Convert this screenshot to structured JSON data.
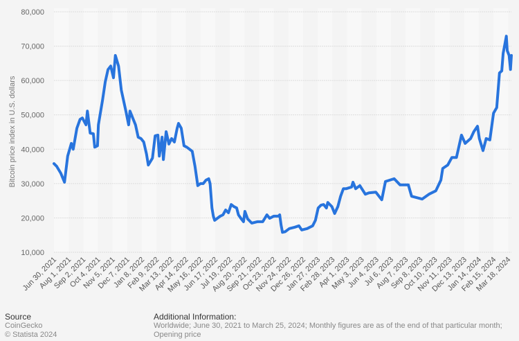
{
  "chart_data": {
    "type": "line",
    "title": "",
    "xlabel": "",
    "ylabel": "Bitcoin price index in U.S. dollars",
    "ylim": [
      10000,
      80000
    ],
    "yticks": [
      10000,
      20000,
      30000,
      40000,
      50000,
      60000,
      70000,
      80000
    ],
    "ytick_labels": [
      "10,000",
      "20,000",
      "30,000",
      "40,000",
      "50,000",
      "60,000",
      "70,000",
      "80,000"
    ],
    "x_unit": "days since Jun 30, 2021",
    "xlim": [
      0,
      999
    ],
    "grid": true,
    "line_color": "#2874dd",
    "xtick_labels": [
      "Jun 30, 2021",
      "Aug 1, 2021",
      "Sep 2, 2021",
      "Oct 4, 2021",
      "Nov 5, 2021",
      "Dec 7, 2021",
      "Jan 8, 2022",
      "Feb 9, 2022",
      "Mar 13, 2022",
      "Apr 14, 2022",
      "May 16, 2022",
      "Jun 17, 2022",
      "Jul 19, 2022",
      "Aug 20, 2022",
      "Sep 21, 2022",
      "Oct 23, 2022",
      "Nov 24, 2022",
      "Dec 26, 2022",
      "Jan 27, 2023",
      "Feb 28, 2023",
      "Apr 1, 2023",
      "May 3, 2023",
      "Jun 4, 2023",
      "Jul 6, 2023",
      "Aug 7, 2023",
      "Sep 8, 2023",
      "Oct 10, 2023",
      "Nov 11, 2023",
      "Dec 13, 2023",
      "Jan 14, 2024",
      "Feb 15, 2024",
      "Mar 18, 2024"
    ],
    "xtick_step_days": 32,
    "series": [
      {
        "name": "Bitcoin price index",
        "x": [
          0,
          6,
          15,
          23,
          30,
          38,
          42,
          50,
          57,
          62,
          70,
          73,
          79,
          86,
          89,
          95,
          97,
          106,
          112,
          118,
          124,
          130,
          134,
          141,
          147,
          151,
          157,
          163,
          166,
          172,
          178,
          184,
          190,
          196,
          202,
          206,
          215,
          221,
          227,
          230,
          236,
          239,
          245,
          251,
          257,
          263,
          269,
          272,
          278,
          284,
          290,
          296,
          302,
          308,
          314,
          320,
          326,
          332,
          338,
          341,
          345,
          348,
          351,
          357,
          363,
          369,
          375,
          381,
          387,
          393,
          399,
          403,
          408,
          414,
          417,
          423,
          432,
          444,
          456,
          465,
          471,
          480,
          490,
          493,
          496,
          499,
          505,
          514,
          526,
          535,
          541,
          553,
          565,
          571,
          577,
          583,
          589,
          595,
          598,
          607,
          613,
          620,
          626,
          632,
          638,
          650,
          653,
          659,
          668,
          680,
          688,
          703,
          716,
          724,
          743,
          756,
          774,
          781,
          804,
          819,
          834,
          845,
          849,
          860,
          869,
          879,
          890,
          898,
          910,
          917,
          925,
          929,
          937,
          944,
          952,
          960,
          967,
          973,
          978,
          981,
          985,
          988,
          990,
          994,
          997,
          999
        ],
        "values": [
          35800,
          35000,
          33000,
          30400,
          38000,
          41700,
          40000,
          46100,
          48700,
          49100,
          47100,
          51100,
          44700,
          44500,
          40600,
          41000,
          47100,
          54200,
          59600,
          63200,
          64200,
          60800,
          67300,
          64200,
          57200,
          54800,
          51100,
          47100,
          51100,
          49100,
          47100,
          43500,
          43100,
          42100,
          38600,
          35400,
          37400,
          43900,
          44100,
          38000,
          43500,
          37000,
          45100,
          41500,
          43100,
          42100,
          46100,
          47500,
          46100,
          41000,
          40600,
          40000,
          39400,
          35000,
          29400,
          30000,
          30000,
          31000,
          31400,
          30000,
          22900,
          20500,
          19300,
          19900,
          20500,
          20900,
          22300,
          21500,
          23900,
          23300,
          22900,
          20900,
          19900,
          18900,
          21900,
          19700,
          18500,
          18900,
          18900,
          20900,
          19900,
          20500,
          20500,
          20900,
          17900,
          15800,
          16000,
          16900,
          17300,
          17700,
          16500,
          16900,
          17700,
          19300,
          22900,
          23700,
          23900,
          22900,
          24500,
          23300,
          21300,
          23300,
          26300,
          28500,
          28500,
          29000,
          30400,
          28500,
          29400,
          26900,
          27300,
          27500,
          25300,
          30600,
          31400,
          29600,
          29600,
          26300,
          25500,
          26900,
          27900,
          31000,
          34400,
          35400,
          37600,
          37600,
          44100,
          41700,
          43100,
          45100,
          46700,
          43100,
          39600,
          43100,
          42700,
          50500,
          52100,
          62200,
          62800,
          67900,
          70700,
          72900,
          68700,
          67300,
          63200,
          67300
        ]
      }
    ]
  },
  "footer": {
    "source_heading": "Source",
    "source_name": "CoinGecko",
    "copyright": "© Statista 2024",
    "info_heading": "Additional Information:",
    "info_text": "Worldwide; June 30, 2021 to March 25, 2024; Monthly figures are as of the end of that particular month; Opening price"
  }
}
